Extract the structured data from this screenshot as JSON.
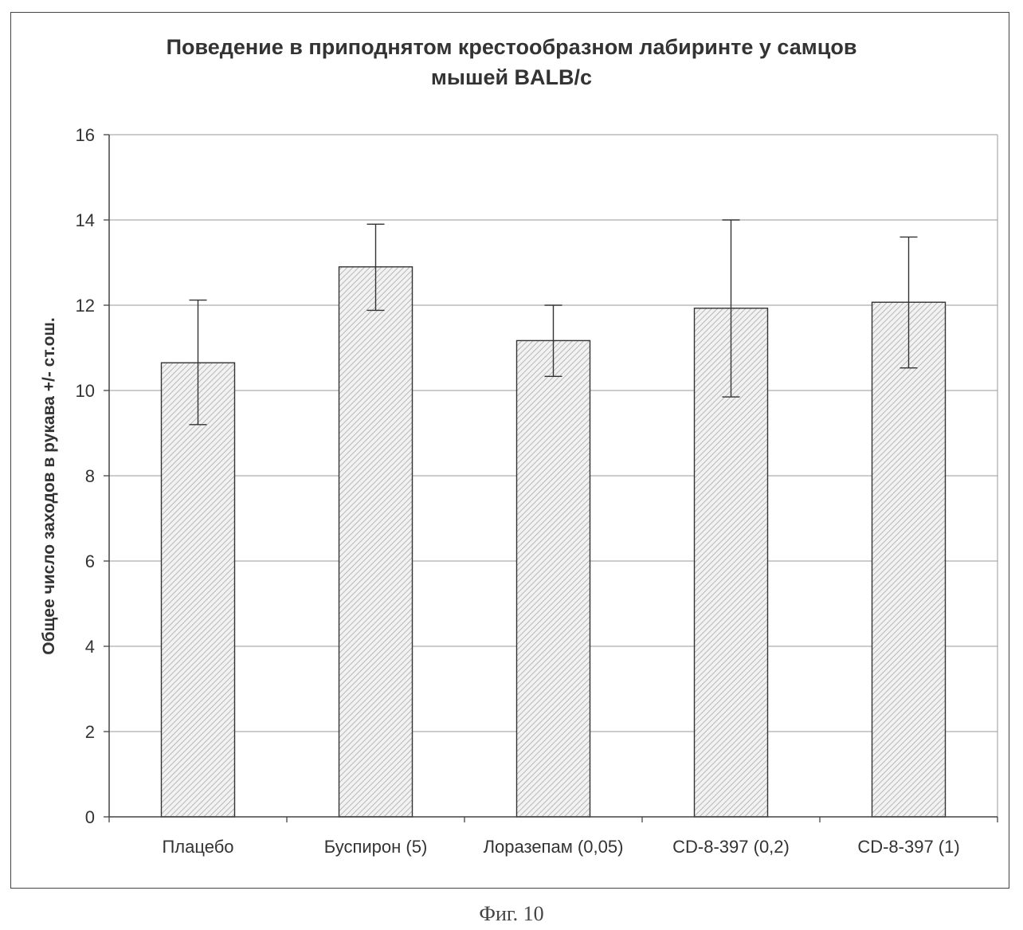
{
  "chart_data": {
    "type": "bar",
    "title": "Поведение в приподнятом крестообразном лабиринте у самцов мышей BALB/c",
    "title_lines": [
      "Поведение в приподнятом крестообразном лабиринте у самцов",
      "мышей BALB/c"
    ],
    "xlabel": "",
    "ylabel": "Общее число заходов в рукава +/- ст.ош.",
    "categories": [
      "Плацебо",
      "Буспирон (5)",
      "Лоразепам (0,05)",
      "CD-8-397 (0,2)",
      "CD-8-397 (1)"
    ],
    "values": [
      10.65,
      12.9,
      11.17,
      11.93,
      12.07
    ],
    "error_low": [
      9.2,
      11.88,
      10.33,
      9.85,
      10.53
    ],
    "error_high": [
      12.12,
      13.9,
      12.0,
      14.0,
      13.6
    ],
    "ylim": [
      0,
      16
    ],
    "yticks": [
      "0",
      "2",
      "4",
      "6",
      "8",
      "10",
      "12",
      "14",
      "16"
    ],
    "grid": true,
    "bar_fill": "hatched light gray",
    "colors": {
      "bar_hatch": "#b8b8b8",
      "bar_outline": "#333333",
      "gridline": "#9a9a9a",
      "axis": "#444444"
    }
  },
  "figure_caption": "Фиг. 10"
}
